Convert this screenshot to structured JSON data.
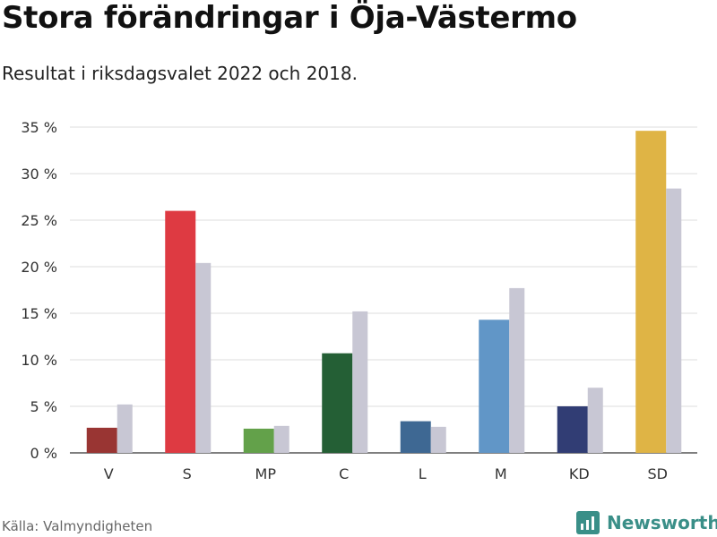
{
  "title": "Stora förändringar i Öja-Västermo",
  "subtitle": "Resultat i riksdagsvalet 2022 och 2018.",
  "source": "Källa: Valmyndigheten",
  "brand": "Newsworthy",
  "colors": {
    "previous_year_bar": "#c8c7d4",
    "brand": "#3a8f88",
    "grid": "#dcdcdc"
  },
  "chart_data": {
    "type": "bar",
    "categories": [
      "V",
      "S",
      "MP",
      "C",
      "L",
      "M",
      "KD",
      "SD"
    ],
    "series": [
      {
        "name": "2022",
        "values": [
          2.7,
          26.0,
          2.6,
          10.7,
          3.4,
          14.3,
          5.0,
          34.6
        ],
        "colors": [
          "#993533",
          "#de3a42",
          "#63a14a",
          "#245f35",
          "#3e6893",
          "#6196c7",
          "#313d74",
          "#dfb445"
        ]
      },
      {
        "name": "2018",
        "values": [
          5.2,
          20.4,
          2.9,
          15.2,
          2.8,
          17.7,
          7.0,
          28.4
        ],
        "colors": [
          "#c8c7d4",
          "#c8c7d4",
          "#c8c7d4",
          "#c8c7d4",
          "#c8c7d4",
          "#c8c7d4",
          "#c8c7d4",
          "#c8c7d4"
        ]
      }
    ],
    "yticks": [
      "0 %",
      "5 %",
      "10 %",
      "15 %",
      "20 %",
      "25 %",
      "30 %",
      "35 %"
    ],
    "ylim": [
      0,
      35
    ],
    "grid": true
  }
}
